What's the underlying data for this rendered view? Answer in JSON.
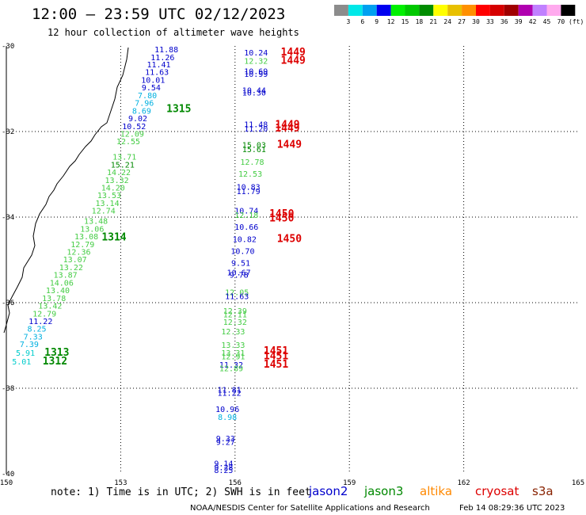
{
  "header": {
    "title": "12:00 – 23:59 UTC 02/12/2023",
    "subtitle": "12 hour collection of altimeter wave heights"
  },
  "colorbar": {
    "labels": [
      "3",
      "6",
      "9",
      "12",
      "15",
      "18",
      "21",
      "24",
      "27",
      "30",
      "33",
      "36",
      "39",
      "42",
      "45",
      "70"
    ],
    "unit": "(ft)",
    "colors": [
      "#8c8c8c",
      "#00e8e8",
      "#00a0f0",
      "#0000f0",
      "#00f000",
      "#00c800",
      "#008c00",
      "#ffff00",
      "#e8c000",
      "#ff9000",
      "#ff0000",
      "#d60000",
      "#a00000",
      "#b000b0",
      "#c080ff",
      "#ffaaee",
      "#000000"
    ]
  },
  "note": "note: 1) Time is in UTC; 2) SWH is in feet",
  "satellites": [
    {
      "name": "jason2",
      "color": "#0000cc"
    },
    {
      "name": "jason3",
      "color": "#008800"
    },
    {
      "name": "altika",
      "color": "#ff8800"
    },
    {
      "name": "cryosat",
      "color": "#dd0000"
    },
    {
      "name": "s3a",
      "color": "#882200"
    }
  ],
  "credit": "NOAA/NESDIS Center for Satellite Applications and Research",
  "timestamp": "Feb 14 08:29:36 UTC 2023",
  "chart_data": {
    "type": "scatter",
    "title": "12:00 – 23:59 UTC 02/12/2023",
    "subtitle": "12 hour collection of altimeter wave heights",
    "xlabel": "",
    "ylabel": "",
    "xlim": [
      150,
      165
    ],
    "ylim": [
      -40,
      -30
    ],
    "x_ticks": [
      150,
      153,
      156,
      159,
      162,
      165
    ],
    "y_ticks": [
      -30,
      -32,
      -34,
      -36,
      -38,
      -40
    ],
    "x_tick_labels": [
      "150",
      "153",
      "156",
      "159",
      "162",
      "165"
    ],
    "y_tick_labels": [
      "-30",
      "-32",
      "-34",
      "-36",
      "-38",
      "-40"
    ],
    "grid": true,
    "series": [
      {
        "name": "1315",
        "label_pos": [
          154.2,
          -31.55
        ],
        "color": "#008800",
        "points": [
          {
            "lon": 154.2,
            "lat": -30.15,
            "v": "11.88",
            "c": "#0000cc"
          },
          {
            "lon": 154.1,
            "lat": -30.33,
            "v": "11.26",
            "c": "#0000cc"
          },
          {
            "lon": 154.0,
            "lat": -30.5,
            "v": "11.41",
            "c": "#0000cc"
          },
          {
            "lon": 153.95,
            "lat": -30.68,
            "v": "11.63",
            "c": "#0000cc"
          },
          {
            "lon": 153.85,
            "lat": -30.86,
            "v": "10.01",
            "c": "#0000cc"
          },
          {
            "lon": 153.8,
            "lat": -31.04,
            "v": "9.54",
            "c": "#0000cc"
          },
          {
            "lon": 153.7,
            "lat": -31.22,
            "v": "7.80",
            "c": "#00b0e0"
          },
          {
            "lon": 153.62,
            "lat": -31.4,
            "v": "7.96",
            "c": "#00b0e0"
          },
          {
            "lon": 153.55,
            "lat": -31.58,
            "v": "8.69",
            "c": "#00b0e0"
          },
          {
            "lon": 153.45,
            "lat": -31.76,
            "v": "9.02",
            "c": "#0000cc"
          },
          {
            "lon": 153.35,
            "lat": -31.94,
            "v": "10.52",
            "c": "#0000cc"
          },
          {
            "lon": 153.3,
            "lat": -32.12,
            "v": "12.09",
            "c": "#44cc44"
          },
          {
            "lon": 153.2,
            "lat": -32.3,
            "v": "12.55",
            "c": "#44cc44"
          },
          {
            "lon": 153.1,
            "lat": -32.66,
            "v": "13.71",
            "c": "#44cc44"
          },
          {
            "lon": 153.05,
            "lat": -32.84,
            "v": "15.21",
            "c": "#008800"
          },
          {
            "lon": 152.95,
            "lat": -33.02,
            "v": "14.22",
            "c": "#44cc44"
          },
          {
            "lon": 152.9,
            "lat": -33.2,
            "v": "13.32",
            "c": "#44cc44"
          },
          {
            "lon": 152.8,
            "lat": -33.38,
            "v": "14.20",
            "c": "#44cc44"
          },
          {
            "lon": 152.7,
            "lat": -33.56,
            "v": "13.53",
            "c": "#44cc44"
          },
          {
            "lon": 152.65,
            "lat": -33.74,
            "v": "13.14",
            "c": "#44cc44"
          },
          {
            "lon": 152.55,
            "lat": -33.92,
            "v": "12.74",
            "c": "#44cc44"
          }
        ]
      },
      {
        "name": "1314",
        "label_pos": [
          152.5,
          -34.55
        ],
        "color": "#008800",
        "points": [
          {
            "lon": 152.35,
            "lat": -34.16,
            "v": "13.48",
            "c": "#44cc44"
          },
          {
            "lon": 152.25,
            "lat": -34.34,
            "v": "13.06",
            "c": "#44cc44"
          },
          {
            "lon": 152.1,
            "lat": -34.52,
            "v": "13.08",
            "c": "#44cc44"
          },
          {
            "lon": 152.0,
            "lat": -34.7,
            "v": "12.79",
            "c": "#44cc44"
          },
          {
            "lon": 151.9,
            "lat": -34.88,
            "v": "12.36",
            "c": "#44cc44"
          },
          {
            "lon": 151.8,
            "lat": -35.06,
            "v": "13.07",
            "c": "#44cc44"
          },
          {
            "lon": 151.7,
            "lat": -35.24,
            "v": "13.22",
            "c": "#44cc44"
          },
          {
            "lon": 151.55,
            "lat": -35.42,
            "v": "13.87",
            "c": "#44cc44"
          },
          {
            "lon": 151.45,
            "lat": -35.6,
            "v": "14.06",
            "c": "#44cc44"
          },
          {
            "lon": 151.35,
            "lat": -35.78,
            "v": "13.40",
            "c": "#44cc44"
          },
          {
            "lon": 151.25,
            "lat": -35.96,
            "v": "13.78",
            "c": "#44cc44"
          },
          {
            "lon": 151.15,
            "lat": -36.14,
            "v": "13.42",
            "c": "#44cc44"
          }
        ]
      },
      {
        "name": "1313",
        "label_pos": [
          151.0,
          -37.24
        ],
        "color": "#008800",
        "points": [
          {
            "lon": 151.0,
            "lat": -36.32,
            "v": "12.79",
            "c": "#44cc44"
          },
          {
            "lon": 150.9,
            "lat": -36.5,
            "v": "11.22",
            "c": "#0000cc"
          },
          {
            "lon": 150.8,
            "lat": -36.68,
            "v": "8.25",
            "c": "#00b0e0"
          },
          {
            "lon": 150.7,
            "lat": -36.86,
            "v": "7.33",
            "c": "#00b0e0"
          },
          {
            "lon": 150.6,
            "lat": -37.04,
            "v": "7.39",
            "c": "#00b0e0"
          },
          {
            "lon": 150.5,
            "lat": -37.24,
            "v": "5.91",
            "c": "#00cccc"
          }
        ]
      },
      {
        "name": "1312",
        "label_pos": [
          150.95,
          -37.44
        ],
        "color": "#008800",
        "points": [
          {
            "lon": 150.4,
            "lat": -37.44,
            "v": "5.01",
            "c": "#00cccc"
          }
        ]
      },
      {
        "name": "1449",
        "label_pos": [
          157.2,
          -30.42
        ],
        "color": "#dd0000",
        "points": [
          {
            "lon": 156.55,
            "lat": -30.22,
            "v": "10.24",
            "c": "#0000cc"
          },
          {
            "lon": 156.55,
            "lat": -30.42,
            "v": "12.32",
            "c": "#44cc44"
          },
          {
            "lon": 156.55,
            "lat": -30.66,
            "v": "10.69",
            "c": "#0000cc"
          },
          {
            "lon": 156.55,
            "lat": -30.72,
            "v": "10.99",
            "c": "#0000cc"
          },
          {
            "lon": 156.5,
            "lat": -31.1,
            "v": "10.44",
            "c": "#0000cc"
          },
          {
            "lon": 156.5,
            "lat": -31.16,
            "v": "10.30",
            "c": "#0000cc"
          },
          {
            "lon": 156.55,
            "lat": -31.9,
            "v": "11.48",
            "c": "#0000cc"
          },
          {
            "lon": 156.55,
            "lat": -32.0,
            "v": "11.20",
            "c": "#0000cc"
          },
          {
            "lon": 156.5,
            "lat": -32.38,
            "v": "15.03",
            "c": "#008800"
          },
          {
            "lon": 156.5,
            "lat": -32.48,
            "v": "15.61",
            "c": "#008800"
          },
          {
            "lon": 156.45,
            "lat": -32.78,
            "v": "12.78",
            "c": "#44cc44"
          },
          {
            "lon": 156.4,
            "lat": -33.06,
            "v": "12.53",
            "c": "#44cc44"
          },
          {
            "lon": 156.35,
            "lat": -33.36,
            "v": "10.83",
            "c": "#0000cc"
          },
          {
            "lon": 156.35,
            "lat": -33.46,
            "v": "11.79",
            "c": "#0000cc"
          }
        ]
      },
      {
        "name": "1450",
        "label_pos": [
          156.9,
          -34.0
        ],
        "color": "#dd0000",
        "points": [
          {
            "lon": 156.3,
            "lat": -33.92,
            "v": "10.74",
            "c": "#0000cc"
          },
          {
            "lon": 156.3,
            "lat": -34.02,
            "v": "12.18",
            "c": "#44cc44"
          },
          {
            "lon": 156.3,
            "lat": -34.3,
            "v": "10.66",
            "c": "#0000cc"
          },
          {
            "lon": 156.25,
            "lat": -34.58,
            "v": "10.82",
            "c": "#0000cc"
          },
          {
            "lon": 156.2,
            "lat": -34.86,
            "v": "10.70",
            "c": "#0000cc"
          },
          {
            "lon": 156.15,
            "lat": -35.14,
            "v": "9.51",
            "c": "#0000cc"
          },
          {
            "lon": 156.1,
            "lat": -35.36,
            "v": "10.67",
            "c": "#0000cc"
          },
          {
            "lon": 156.1,
            "lat": -35.42,
            "v": "9.78",
            "c": "#0000cc"
          },
          {
            "lon": 156.05,
            "lat": -35.82,
            "v": "12.05",
            "c": "#44cc44"
          },
          {
            "lon": 156.05,
            "lat": -35.92,
            "v": "11.63",
            "c": "#0000cc"
          },
          {
            "lon": 156.0,
            "lat": -36.26,
            "v": "12.39",
            "c": "#44cc44"
          },
          {
            "lon": 156.0,
            "lat": -36.34,
            "v": "12.11",
            "c": "#44cc44"
          },
          {
            "lon": 156.0,
            "lat": -36.52,
            "v": "12.32",
            "c": "#44cc44"
          },
          {
            "lon": 155.95,
            "lat": -36.74,
            "v": "12.33",
            "c": "#44cc44"
          }
        ]
      },
      {
        "name": "1451",
        "label_pos": [
          156.75,
          -37.2
        ],
        "color": "#dd0000",
        "points": [
          {
            "lon": 155.95,
            "lat": -37.06,
            "v": "13.33",
            "c": "#44cc44"
          },
          {
            "lon": 155.95,
            "lat": -37.24,
            "v": "13.31",
            "c": "#44cc44"
          },
          {
            "lon": 155.95,
            "lat": -37.32,
            "v": "12.91",
            "c": "#44cc44"
          },
          {
            "lon": 155.9,
            "lat": -37.52,
            "v": "11.32",
            "c": "#0000cc"
          },
          {
            "lon": 155.9,
            "lat": -37.6,
            "v": "12.89",
            "c": "#44cc44"
          },
          {
            "lon": 155.85,
            "lat": -38.1,
            "v": "11.81",
            "c": "#0000cc"
          },
          {
            "lon": 155.85,
            "lat": -38.18,
            "v": "11.22",
            "c": "#0000cc"
          },
          {
            "lon": 155.8,
            "lat": -38.56,
            "v": "10.96",
            "c": "#0000cc"
          },
          {
            "lon": 155.8,
            "lat": -38.74,
            "v": "8.98",
            "c": "#00b0e0"
          },
          {
            "lon": 155.75,
            "lat": -39.24,
            "v": "9.33",
            "c": "#0000cc"
          },
          {
            "lon": 155.75,
            "lat": -39.32,
            "v": "9.27",
            "c": "#0000cc"
          },
          {
            "lon": 155.7,
            "lat": -39.82,
            "v": "9.14",
            "c": "#0000cc"
          },
          {
            "lon": 155.7,
            "lat": -39.92,
            "v": "9.28",
            "c": "#0000cc"
          },
          {
            "lon": 155.7,
            "lat": -39.98,
            "v": "8.25",
            "c": "#0000cc"
          }
        ]
      }
    ],
    "extra_pass_labels": [
      {
        "name": "1449",
        "lon": 157.2,
        "lat": -30.22,
        "color": "#dd0000"
      },
      {
        "name": "1449",
        "lon": 157.05,
        "lat": -31.92,
        "color": "#dd0000"
      },
      {
        "name": "1449",
        "lon": 157.05,
        "lat": -32.0,
        "color": "#dd0000"
      },
      {
        "name": "1449",
        "lon": 157.1,
        "lat": -32.38,
        "color": "#dd0000"
      },
      {
        "name": "1450",
        "lon": 156.9,
        "lat": -34.1,
        "color": "#dd0000"
      },
      {
        "name": "1450",
        "lon": 157.1,
        "lat": -34.58,
        "color": "#dd0000"
      },
      {
        "name": "1451",
        "lon": 156.75,
        "lat": -37.32,
        "color": "#dd0000"
      },
      {
        "name": "1451",
        "lon": 156.75,
        "lat": -37.52,
        "color": "#dd0000"
      }
    ]
  }
}
